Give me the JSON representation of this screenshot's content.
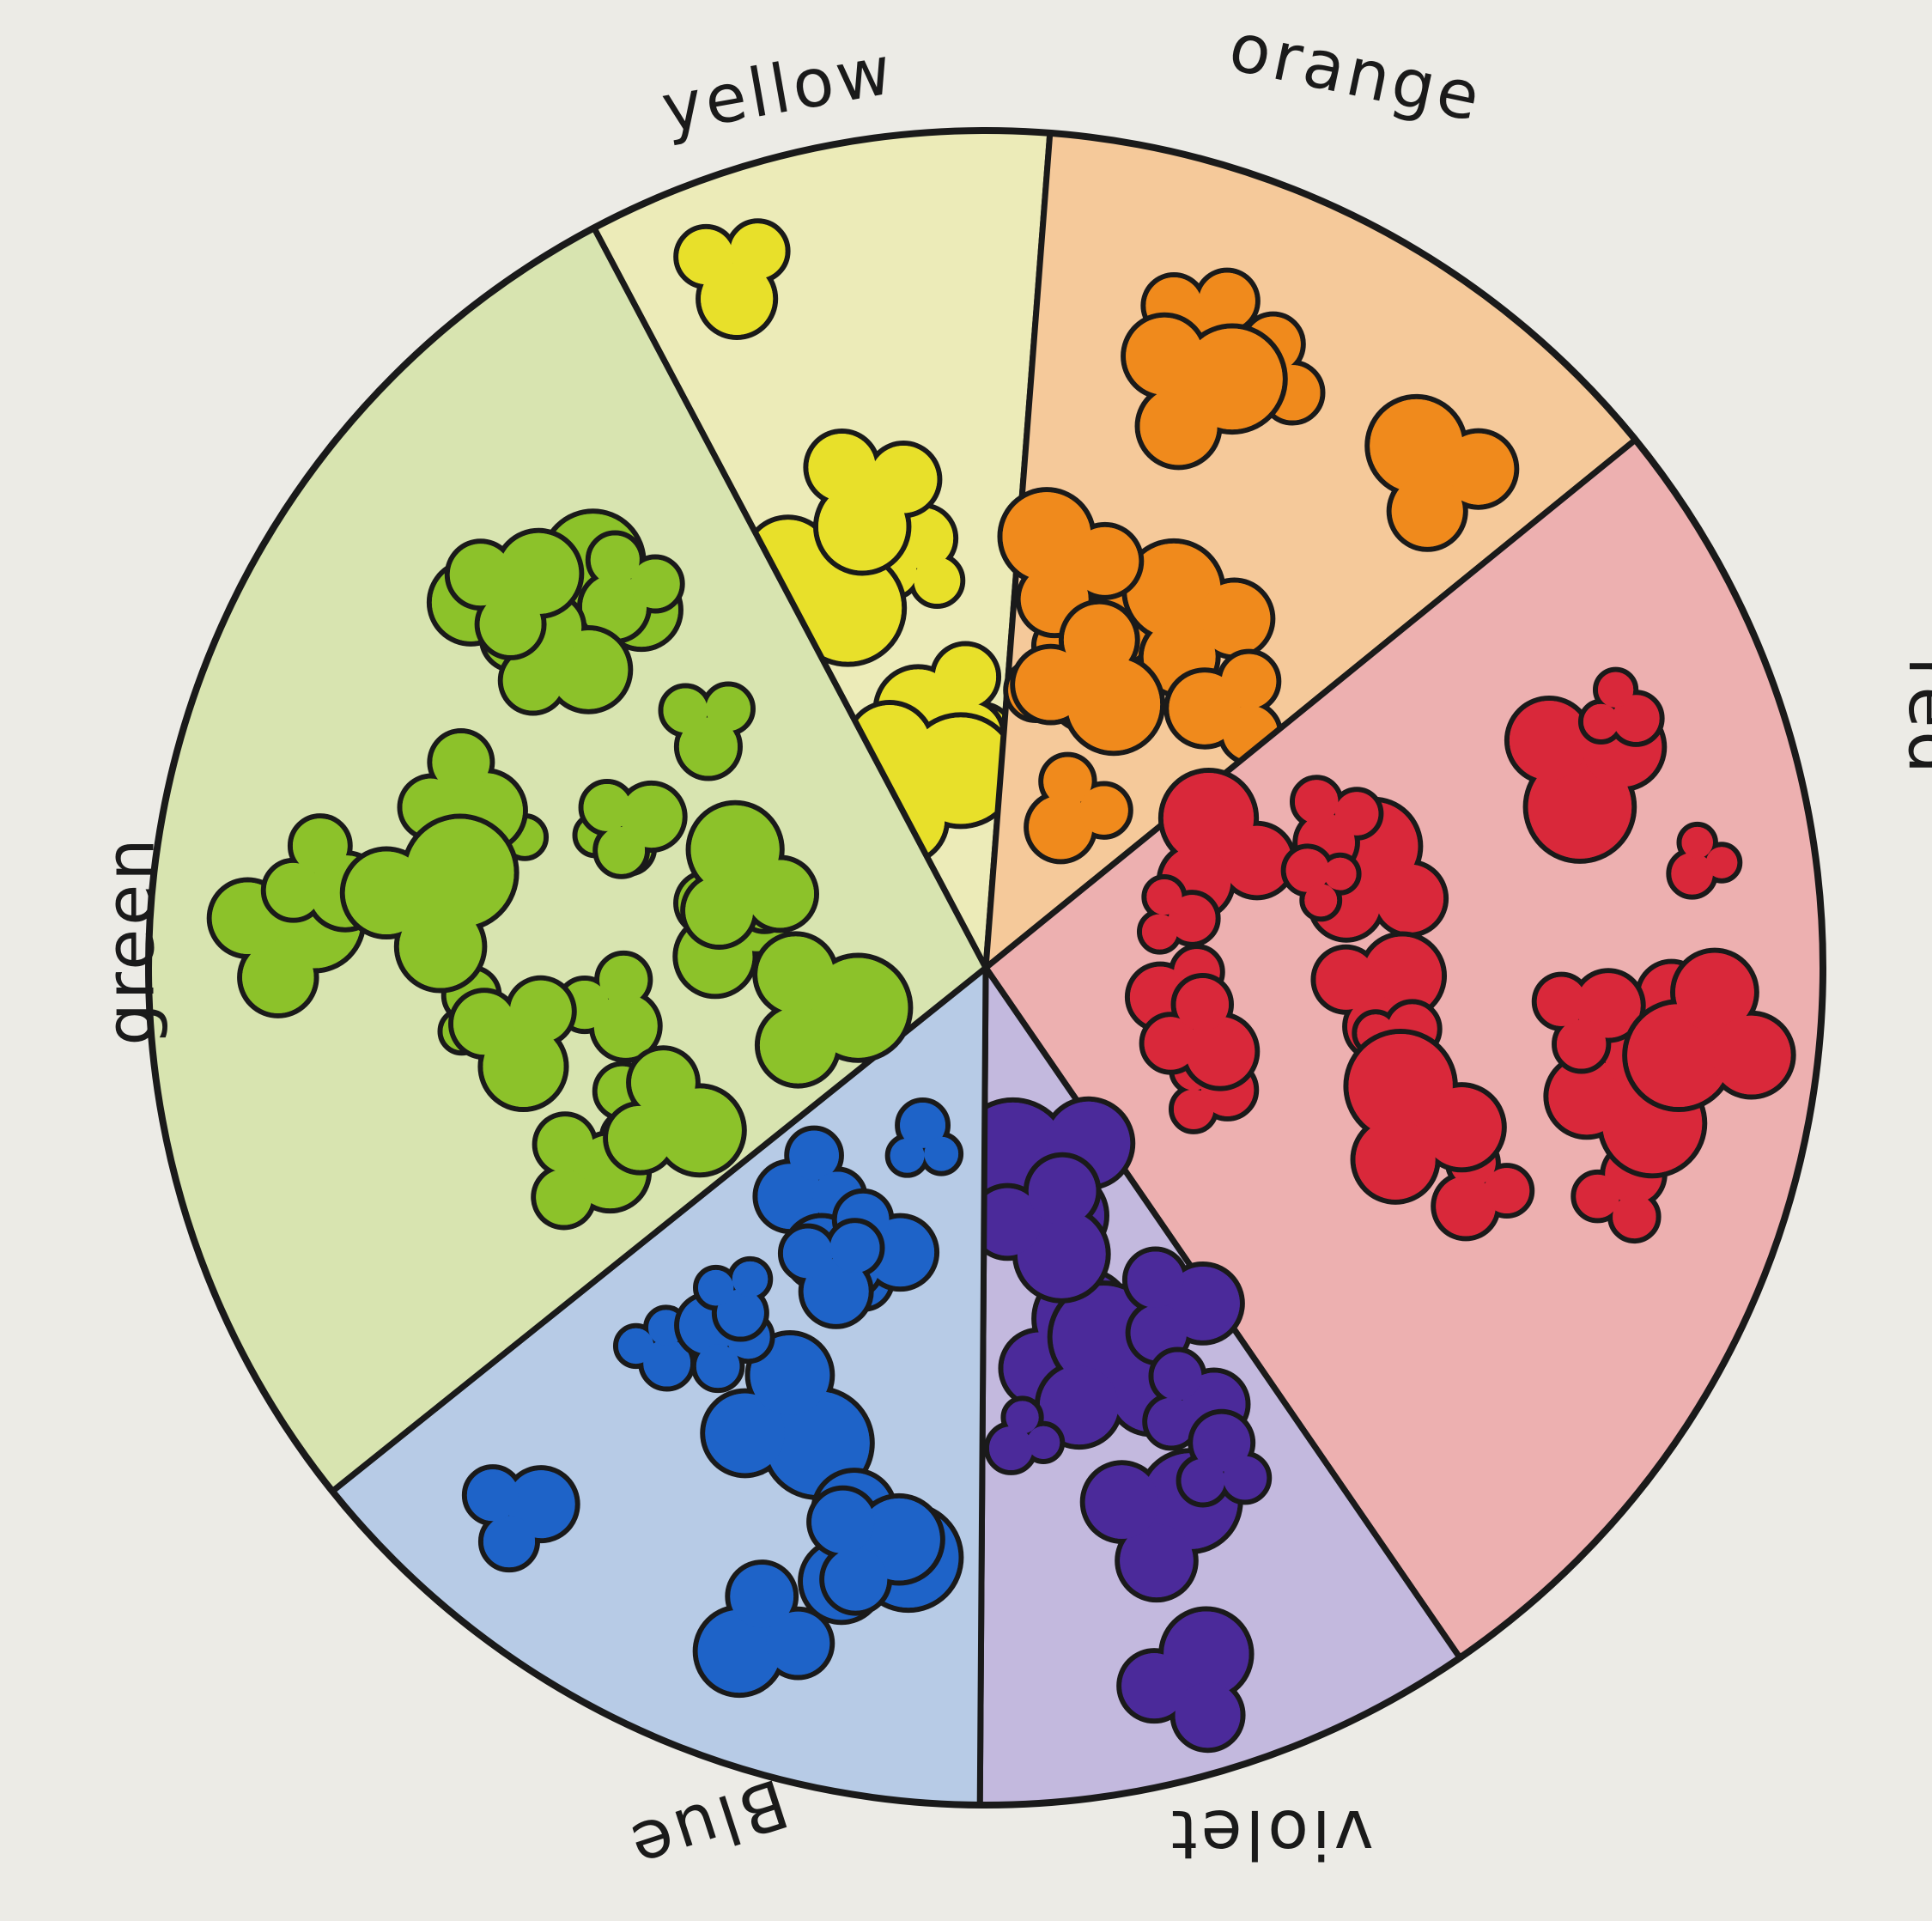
{
  "segments": [
    {
      "label": "yellow",
      "start": -117.9,
      "end": -85.6,
      "color": "#e8e02a",
      "wash": "#ecebb8"
    },
    {
      "label": "orange",
      "start": -85.6,
      "end": -39.1,
      "color": "#f08a1c",
      "wash": "#f5c99a"
    },
    {
      "label": "red",
      "start": -39.1,
      "end": 55.5,
      "color": "#d9283a",
      "wash": "#edb0b0"
    },
    {
      "label": "violet",
      "start": 55.5,
      "end": 90.4,
      "color": "#4b2a9a",
      "wash": "#c3b9de"
    },
    {
      "label": "Blue",
      "start": 90.4,
      "end": 141.3,
      "color": "#1e63c8",
      "wash": "#b7cbe6"
    },
    {
      "label": "green",
      "start": 141.3,
      "end": 242.1,
      "color": "#8cc22a",
      "wash": "#d8e4b0"
    }
  ],
  "outline_color": "#1a1a1a",
  "paper_color": "#ecebe6"
}
